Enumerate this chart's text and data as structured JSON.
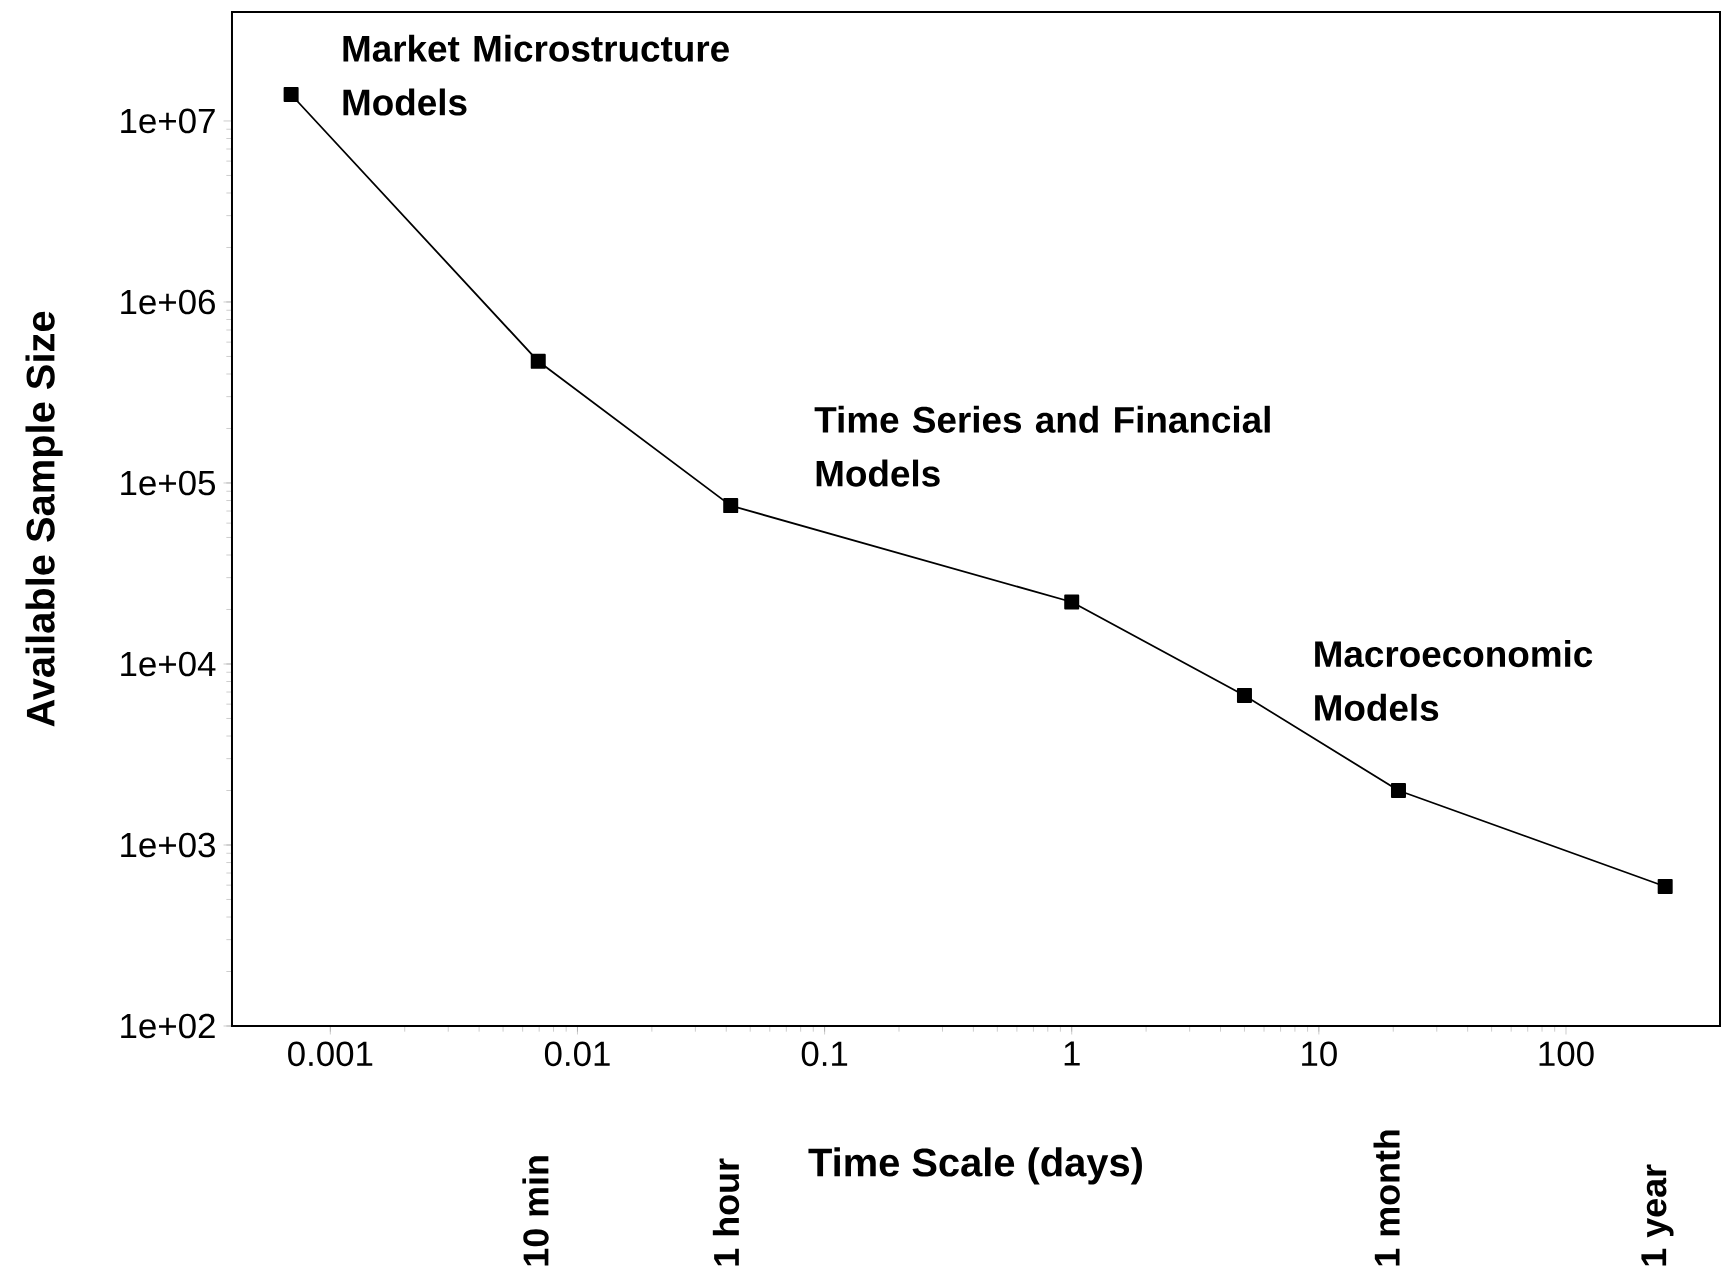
{
  "chart_data": {
    "type": "line",
    "xlabel": "Time Scale (days)",
    "ylabel": "Available Sample Size",
    "x": [
      0.000694,
      0.00694,
      0.0417,
      1,
      5,
      21,
      252
    ],
    "series": [
      {
        "color": "#000000",
        "values": [
          14000000,
          470000,
          75000,
          22000,
          6700,
          2000,
          590
        ]
      }
    ],
    "log": "xy",
    "marker": "square",
    "line_style": "solid",
    "grid": false,
    "xlim": [
      0.0004,
      420
    ],
    "ylim": [
      100,
      40000000
    ],
    "xticks": [
      0.001,
      0.01,
      0.1,
      1,
      10,
      100
    ],
    "yticks": [
      {
        "value": 100,
        "label": "1e+02"
      },
      {
        "value": 1000,
        "label": "1e+03"
      },
      {
        "value": 10000,
        "label": "1e+04"
      },
      {
        "value": 100000,
        "label": "1e+05"
      },
      {
        "value": 1000000,
        "label": "1e+06"
      },
      {
        "value": 10000000,
        "label": "1e+07"
      }
    ],
    "annotations": [
      "Market Microstructure Models",
      "Time Series and Financial Models",
      "Macroeconomic Models",
      "10 min",
      "1 hour",
      "1 month",
      "1 year"
    ]
  }
}
